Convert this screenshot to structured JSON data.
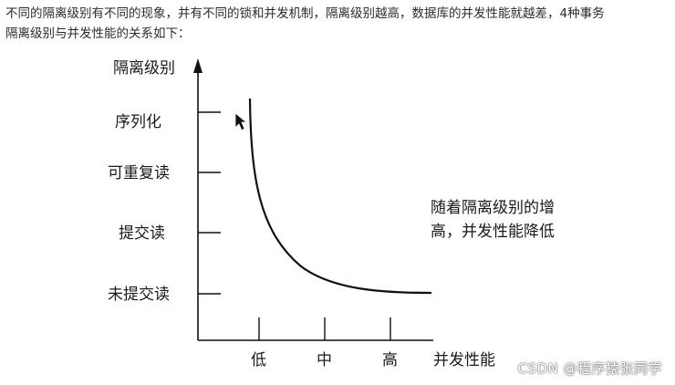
{
  "intro": {
    "line1": "不同的隔离级别有不同的现象，并有不同的锁和并发机制，隔离级别越高，数据库的并发性能就越差，4种事务",
    "line2": "隔离级别与并发性能的关系如下："
  },
  "diagram": {
    "y_axis_label": "隔离级别",
    "x_axis_label": "并发性能",
    "y_levels": [
      "序列化",
      "可重复读",
      "提交读",
      "未提交读"
    ],
    "x_levels": [
      "低",
      "中",
      "高"
    ],
    "note_line1": "随着隔离级别的增",
    "note_line2": "高，并发性能降低"
  },
  "cursor": "pointer-cursor-icon",
  "watermark": "CSDN @程序猿张同学"
}
